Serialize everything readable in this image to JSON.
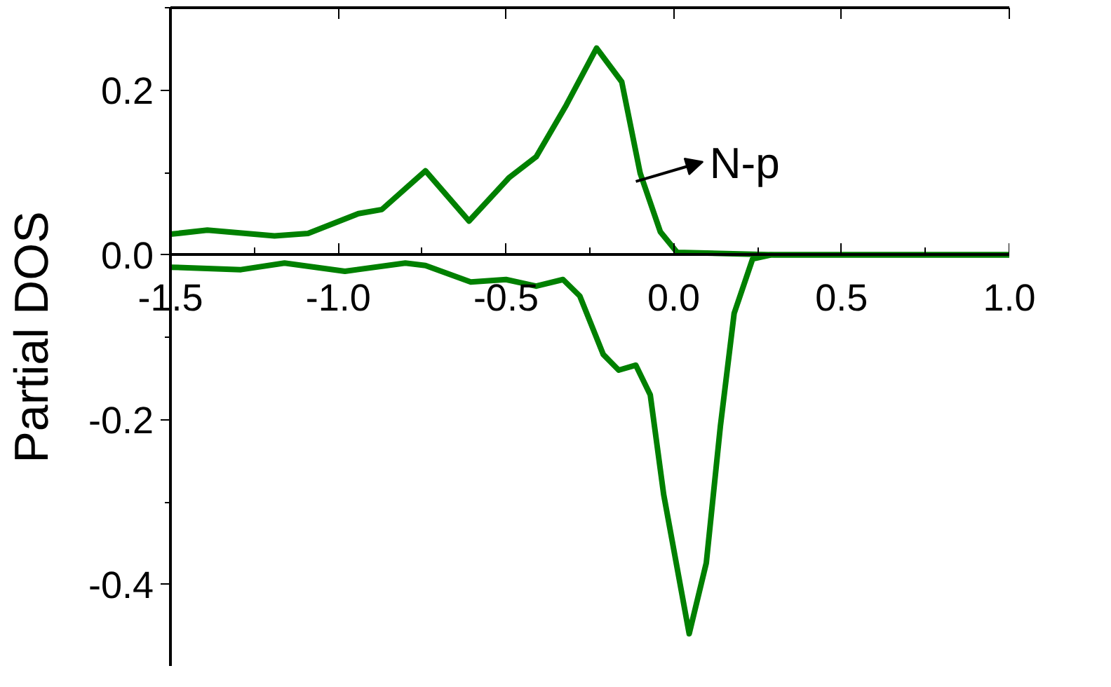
{
  "chart_data": {
    "type": "line",
    "ylabel": "Partial DOS",
    "xlim": [
      -1.5,
      1.0
    ],
    "ylim": [
      -0.5,
      0.3
    ],
    "xticks": [
      -1.5,
      {
        "value": -1.0,
        "label": "-1.0"
      },
      -0.5,
      {
        "value": 0,
        "label": "0.0"
      },
      0.5,
      {
        "value": 1.0,
        "label": "1.0"
      }
    ],
    "yticks": [
      -0.4,
      -0.2,
      {
        "value": 0,
        "label": "0.0"
      },
      0.2
    ],
    "grid": false,
    "line_style": "solid",
    "annotations": [
      {
        "text": "N-p",
        "x": -0.113,
        "y": 0.089
      }
    ],
    "series": [
      {
        "color": "#008000",
        "x": [
          -1.5,
          -1.39,
          -1.19,
          -1.09,
          -0.94,
          -0.87,
          -0.74,
          -0.61,
          -0.49,
          -0.41,
          -0.32,
          -0.23,
          -0.155,
          -0.1,
          -0.04,
          0.01,
          0.3,
          1.0
        ],
        "values": [
          0.025,
          0.03,
          0.023,
          0.026,
          0.05,
          0.055,
          0.102,
          0.041,
          0.094,
          0.119,
          0.182,
          0.251,
          0.21,
          0.099,
          0.028,
          0.003,
          0.0,
          0.0
        ]
      },
      {
        "color": "#008000",
        "x": [
          -1.5,
          -1.29,
          -1.16,
          -0.98,
          -0.8,
          -0.74,
          -0.605,
          -0.5,
          -0.41,
          -0.33,
          -0.28,
          -0.21,
          -0.164,
          -0.113,
          -0.07,
          -0.03,
          0.046,
          0.097,
          0.139,
          0.18,
          0.235,
          0.29,
          1.0
        ],
        "values": [
          -0.015,
          -0.018,
          -0.01,
          -0.02,
          -0.01,
          -0.013,
          -0.033,
          -0.03,
          -0.038,
          -0.03,
          -0.05,
          -0.121,
          -0.14,
          -0.134,
          -0.17,
          -0.291,
          -0.46,
          -0.374,
          -0.208,
          -0.071,
          -0.005,
          0.0,
          0.0
        ]
      }
    ]
  }
}
